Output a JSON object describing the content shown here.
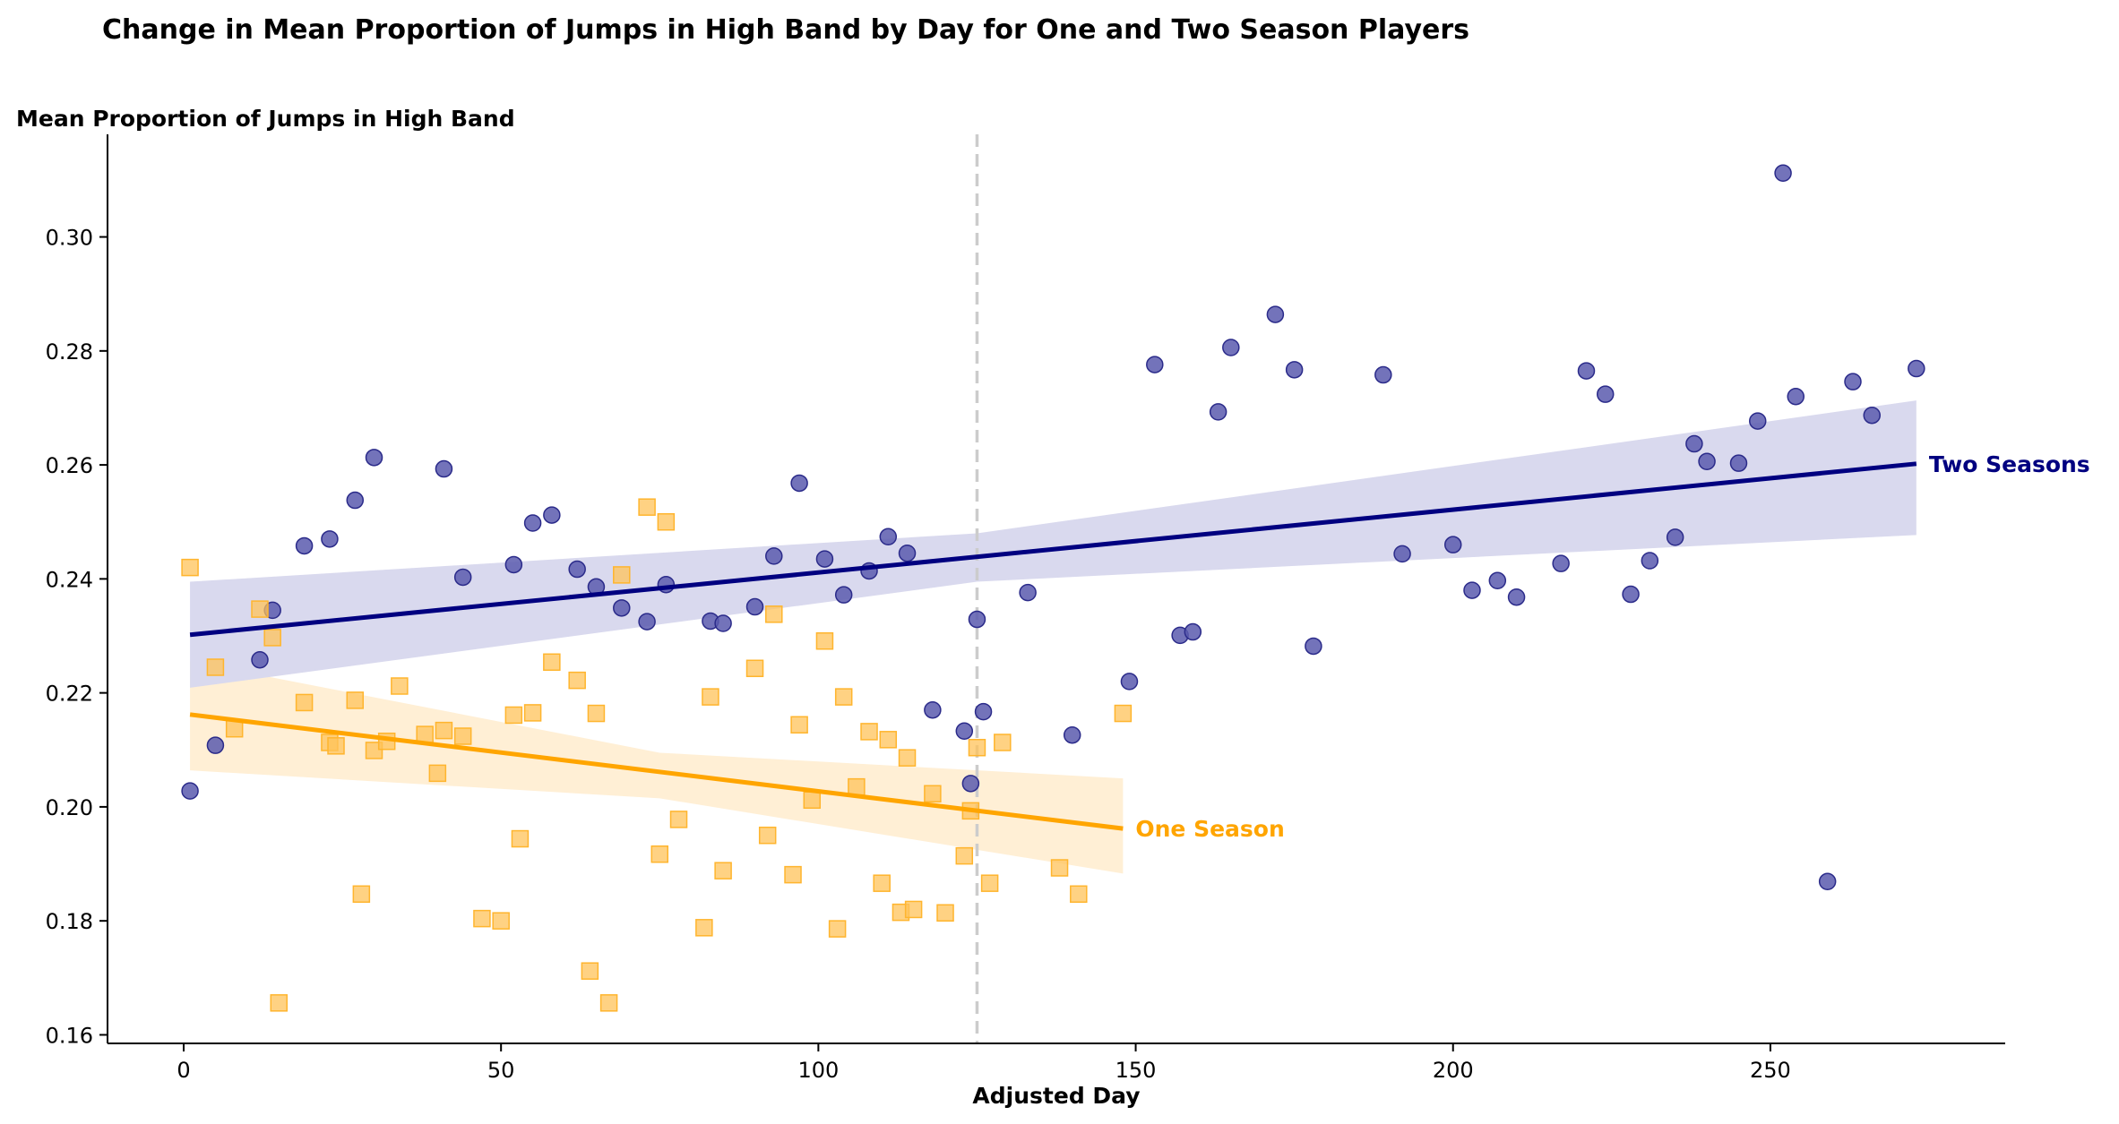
{
  "chart_data": {
    "type": "scatter",
    "title": "Change in Mean Proportion of Jumps in High Band by Day for One and Two Season Players",
    "xlabel": "Adjusted Day",
    "ylabel": "Mean Proportion of Jumps in High Band",
    "xlim": [
      -12,
      287
    ],
    "ylim": [
      0.1585,
      0.318
    ],
    "xticks": [
      0,
      50,
      100,
      150,
      200,
      250
    ],
    "yticks": [
      0.16,
      0.18,
      0.2,
      0.22,
      0.24,
      0.26,
      0.28,
      0.3
    ],
    "grid": false,
    "vline": {
      "x": 125,
      "style": "dashed",
      "color": "#cccccc"
    },
    "series": [
      {
        "name": "Two Seasons",
        "marker": "circle",
        "color": "#000080",
        "fill": "#5a5aae",
        "fit_line": {
          "x": [
            1,
            273
          ],
          "y": [
            0.2302,
            0.2602
          ]
        },
        "band": {
          "x": [
            1,
            125,
            273
          ],
          "lower": [
            0.2209,
            0.2395,
            0.2477
          ],
          "upper": [
            0.2395,
            0.248,
            0.2713
          ]
        },
        "x": [
          1,
          5,
          12,
          14,
          19,
          23,
          27,
          30,
          41,
          44,
          52,
          55,
          58,
          62,
          65,
          69,
          73,
          76,
          83,
          85,
          90,
          93,
          97,
          101,
          104,
          108,
          111,
          114,
          118,
          123,
          124,
          125,
          126,
          133,
          140,
          149,
          153,
          157,
          159,
          163,
          165,
          172,
          175,
          178,
          189,
          192,
          200,
          203,
          207,
          210,
          217,
          221,
          224,
          228,
          231,
          235,
          238,
          240,
          245,
          248,
          252,
          254,
          259,
          263,
          266,
          273
        ],
        "y": [
          0.2028,
          0.2108,
          0.2258,
          0.2345,
          0.2458,
          0.247,
          0.2538,
          0.2613,
          0.2593,
          0.2403,
          0.2425,
          0.2498,
          0.2512,
          0.2417,
          0.2386,
          0.2349,
          0.2325,
          0.239,
          0.2326,
          0.2322,
          0.2351,
          0.244,
          0.2568,
          0.2435,
          0.2372,
          0.2414,
          0.2474,
          0.2445,
          0.217,
          0.2133,
          0.2041,
          0.2329,
          0.2167,
          0.2376,
          0.2126,
          0.222,
          0.2776,
          0.2301,
          0.2307,
          0.2693,
          0.2806,
          0.2864,
          0.2767,
          0.2282,
          0.2758,
          0.2444,
          0.246,
          0.238,
          0.2397,
          0.2368,
          0.2427,
          0.2765,
          0.2724,
          0.2373,
          0.2432,
          0.2473,
          0.2637,
          0.2606,
          0.2603,
          0.2677,
          0.3112,
          0.272,
          0.1869,
          0.2746,
          0.2687,
          0.2769
        ]
      },
      {
        "name": "One Season",
        "marker": "square",
        "color": "#ffa500",
        "fill": "#ffc35a",
        "fit_line": {
          "x": [
            1,
            148
          ],
          "y": [
            0.2162,
            0.1962
          ]
        },
        "band": {
          "x": [
            1,
            75,
            148
          ],
          "lower": [
            0.2064,
            0.2015,
            0.1883
          ],
          "upper": [
            0.2255,
            0.2095,
            0.205
          ]
        },
        "x": [
          1,
          5,
          8,
          12,
          14,
          15,
          19,
          23,
          24,
          27,
          28,
          30,
          32,
          34,
          38,
          40,
          41,
          44,
          47,
          50,
          52,
          53,
          55,
          58,
          62,
          64,
          65,
          67,
          69,
          73,
          75,
          76,
          78,
          82,
          83,
          85,
          90,
          92,
          93,
          96,
          97,
          99,
          101,
          103,
          104,
          106,
          108,
          110,
          111,
          113,
          114,
          115,
          118,
          120,
          123,
          124,
          125,
          127,
          129,
          138,
          141,
          148
        ],
        "y": [
          0.242,
          0.2245,
          0.2137,
          0.2347,
          0.2297,
          0.1656,
          0.2183,
          0.2113,
          0.2107,
          0.2187,
          0.1847,
          0.2099,
          0.2115,
          0.2212,
          0.2127,
          0.2059,
          0.2134,
          0.2124,
          0.1804,
          0.18,
          0.2161,
          0.1944,
          0.2165,
          0.2254,
          0.2222,
          0.1712,
          0.2164,
          0.1656,
          0.2407,
          0.2526,
          0.1917,
          0.25,
          0.1978,
          0.1788,
          0.2193,
          0.1888,
          0.2243,
          0.195,
          0.2338,
          0.1881,
          0.2144,
          0.2012,
          0.2291,
          0.1786,
          0.2193,
          0.2035,
          0.2132,
          0.1866,
          0.2118,
          0.1815,
          0.2086,
          0.182,
          0.2023,
          0.1814,
          0.1914,
          0.1993,
          0.2104,
          0.1866,
          0.2113,
          0.1893,
          0.1847,
          0.2164
        ]
      }
    ]
  }
}
